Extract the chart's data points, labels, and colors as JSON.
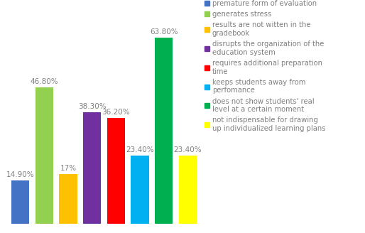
{
  "values": [
    14.9,
    46.8,
    17.0,
    38.3,
    36.2,
    23.4,
    63.8,
    23.4
  ],
  "labels": [
    "14.90%",
    "46.80%",
    "17%",
    "38.30%",
    "36.20%",
    "23.40%",
    "63.80%",
    "23.40%"
  ],
  "colors": [
    "#4472C4",
    "#92D050",
    "#FFC000",
    "#7030A0",
    "#FF0000",
    "#00B0F0",
    "#00B050",
    "#FFFF00"
  ],
  "legend_labels": [
    "premature form of evaluation",
    "generates stress",
    "results are not witten in the\ngradebook",
    "disrupts the organization of the\neducation system",
    "requires additional preparation\ntime",
    "keeps students away from\nperfomance",
    "does not show students' real\nlevel at a certain moment",
    "not indispensable for drawing\nup individualized learning plans"
  ],
  "ylim": [
    0,
    72
  ],
  "background_color": "#ffffff",
  "bar_width": 0.75,
  "label_fontsize": 7.5,
  "legend_fontsize": 7.2,
  "label_color": "#808080"
}
